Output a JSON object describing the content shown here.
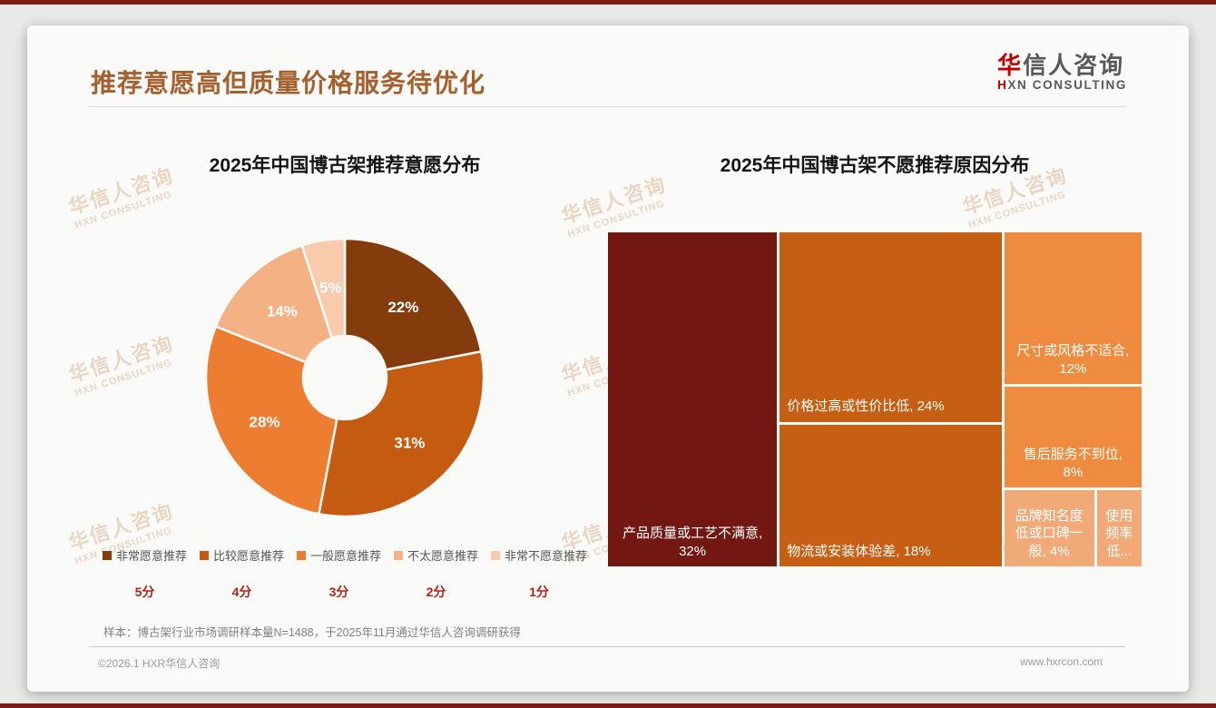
{
  "page": {
    "title": "推荐意愿高但质量价格服务待优化",
    "footnote": "样本：博古架行业市场调研样本量N=1488，于2025年11月通过华信人咨询调研获得",
    "footer_left": "©2026.1 HXR华信人咨询",
    "footer_right": "www.hxrcon.com"
  },
  "logo": {
    "zh_first": "华",
    "zh_rest": "信人咨询",
    "en_first": "H",
    "en_rest": "XN CONSULTING"
  },
  "watermark": {
    "zh": "华信人咨询",
    "en": "HXN CONSULTING"
  },
  "colors": {
    "title_brown": "#A4612F",
    "edge_bar_maroon": "#7E1A13",
    "score_red": "#B02318",
    "slide_background": "#FAFAF8"
  },
  "chart_data": [
    {
      "type": "pie",
      "subtype": "donut",
      "title": "2025年中国博古架推荐意愿分布",
      "labels": [
        "非常愿意推荐",
        "比较愿意推荐",
        "一般愿意推荐",
        "不太愿意推荐",
        "非常不愿意推荐"
      ],
      "values": [
        22,
        31,
        28,
        14,
        5
      ],
      "value_labels": [
        "22%",
        "31%",
        "28%",
        "14%",
        "5%"
      ],
      "scores": [
        "5分",
        "4分",
        "3分",
        "2分",
        "1分"
      ],
      "colors": [
        "#843C0C",
        "#C55A11",
        "#ED7D31",
        "#F4B183",
        "#F8CBAD"
      ],
      "start_angle_deg": 0,
      "direction": "clockwise",
      "legend_position": "bottom"
    },
    {
      "type": "treemap",
      "title": "2025年中国博古架不愿推荐原因分布",
      "items": [
        {
          "key": "quality",
          "label": "产品质量或工艺不满意",
          "value": 32,
          "display_lines": [
            "产品质量或工艺不满意,",
            "32%"
          ],
          "color": "#721712",
          "align": "center"
        },
        {
          "key": "price",
          "label": "价格过高或性价比低",
          "value": 24,
          "display_lines": [
            "价格过高或性价比低, 24%"
          ],
          "color": "#C65F14",
          "align": "left"
        },
        {
          "key": "logistics",
          "label": "物流或安装体验差",
          "value": 18,
          "display_lines": [
            "物流或安装体验差, 18%"
          ],
          "color": "#C65F14",
          "align": "left"
        },
        {
          "key": "size",
          "label": "尺寸或风格不适合",
          "value": 12,
          "display_lines": [
            "尺寸或风格不适合,",
            "12%"
          ],
          "color": "#EE8B3F",
          "align": "center"
        },
        {
          "key": "service",
          "label": "售后服务不到位",
          "value": 8,
          "display_lines": [
            "售后服务不到位,",
            "8%"
          ],
          "color": "#EE8B3F",
          "align": "center"
        },
        {
          "key": "brand",
          "label": "品牌知名度低或口碑一般",
          "value": 4,
          "display_lines": [
            "品牌知名度",
            "低或口碑一",
            "般, 4%"
          ],
          "color": "#F2A978",
          "align": "center"
        },
        {
          "key": "usage",
          "label": "使用频率低",
          "value": 2,
          "display_lines": [
            "使用",
            "频率",
            "低..."
          ],
          "color": "#F2A978",
          "align": "center",
          "truncated": true
        }
      ]
    }
  ]
}
